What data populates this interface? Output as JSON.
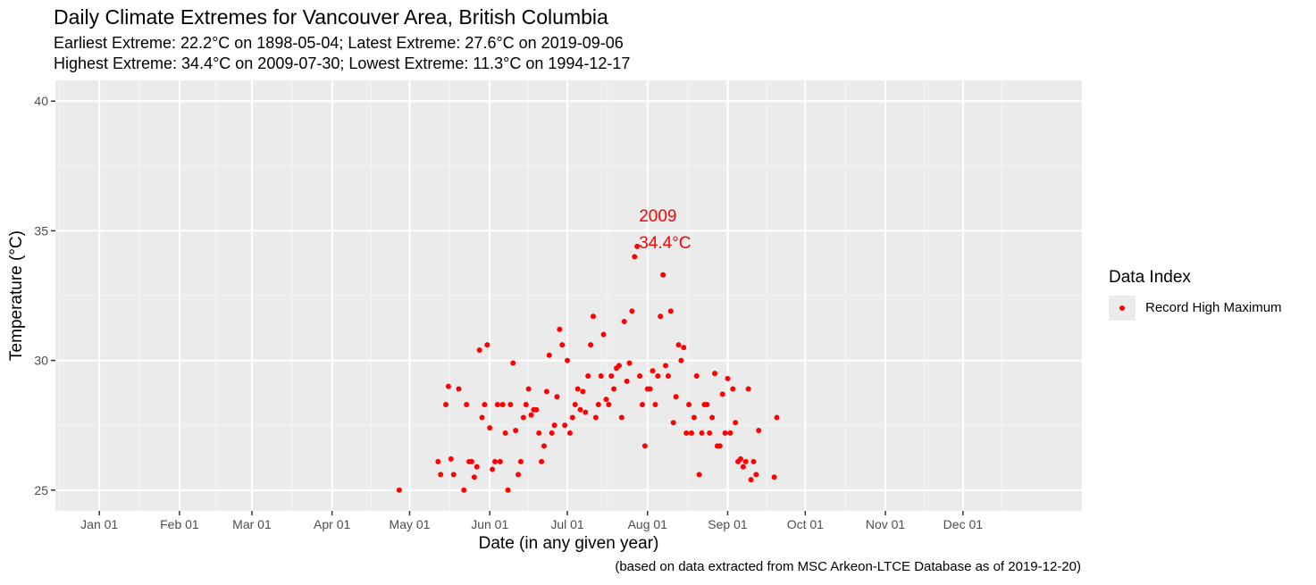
{
  "chart_data": {
    "type": "scatter",
    "title": "Daily Climate Extremes for Vancouver Area, British Columbia",
    "subtitle_lines": [
      "Earliest Extreme: 22.2°C on 1898-05-04; Latest Extreme: 27.6°C on 2019-09-06",
      "Highest Extreme: 34.4°C on 2009-07-30; Lowest Extreme: 11.3°C on 1994-12-17"
    ],
    "xlabel": "Date (in any given year)",
    "ylabel": "Temperature (°C)",
    "caption": "(based on data extracted from MSC Arkeon-LTCE Database as of 2019-12-20)",
    "x_axis_unit": "day of year",
    "x_ticks": [
      {
        "label": "Jan 01",
        "day": 1
      },
      {
        "label": "Feb 01",
        "day": 32
      },
      {
        "label": "Mar 01",
        "day": 60
      },
      {
        "label": "Apr 01",
        "day": 91
      },
      {
        "label": "May 01",
        "day": 121
      },
      {
        "label": "Jun 01",
        "day": 152
      },
      {
        "label": "Jul 01",
        "day": 182
      },
      {
        "label": "Aug 01",
        "day": 213
      },
      {
        "label": "Sep 01",
        "day": 244
      },
      {
        "label": "Oct 01",
        "day": 274
      },
      {
        "label": "Nov 01",
        "day": 305
      },
      {
        "label": "Dec 01",
        "day": 335
      }
    ],
    "xlim": [
      -16,
      381
    ],
    "y_ticks": [
      25,
      30,
      35,
      40
    ],
    "ylim": [
      24.2,
      40.8
    ],
    "grid": true,
    "legend": {
      "title": "Data Index",
      "position": "right",
      "entries": [
        {
          "label": "Record High Maximum",
          "color": "#ff0000"
        }
      ]
    },
    "series": [
      {
        "name": "Record High Maximum",
        "color": "#ff0000",
        "points": [
          [
            117,
            25.0
          ],
          [
            132,
            26.1
          ],
          [
            133,
            25.6
          ],
          [
            135,
            28.3
          ],
          [
            136,
            29.0
          ],
          [
            137,
            26.2
          ],
          [
            138,
            25.6
          ],
          [
            140,
            28.9
          ],
          [
            142,
            25.0
          ],
          [
            143,
            28.3
          ],
          [
            144,
            26.1
          ],
          [
            145,
            26.1
          ],
          [
            146,
            25.5
          ],
          [
            147,
            25.9
          ],
          [
            148,
            30.4
          ],
          [
            149,
            27.8
          ],
          [
            150,
            28.3
          ],
          [
            151,
            30.6
          ],
          [
            152,
            27.4
          ],
          [
            153,
            25.8
          ],
          [
            154,
            26.1
          ],
          [
            155,
            28.3
          ],
          [
            156,
            26.1
          ],
          [
            157,
            28.3
          ],
          [
            158,
            27.2
          ],
          [
            159,
            25.0
          ],
          [
            160,
            28.3
          ],
          [
            161,
            29.9
          ],
          [
            162,
            27.3
          ],
          [
            163,
            25.6
          ],
          [
            164,
            26.1
          ],
          [
            165,
            27.8
          ],
          [
            166,
            28.3
          ],
          [
            167,
            28.9
          ],
          [
            168,
            27.9
          ],
          [
            169,
            28.1
          ],
          [
            170,
            28.1
          ],
          [
            171,
            27.2
          ],
          [
            172,
            26.1
          ],
          [
            173,
            26.7
          ],
          [
            174,
            28.8
          ],
          [
            175,
            30.2
          ],
          [
            176,
            27.2
          ],
          [
            177,
            27.5
          ],
          [
            178,
            28.6
          ],
          [
            179,
            31.2
          ],
          [
            180,
            30.6
          ],
          [
            181,
            27.5
          ],
          [
            182,
            30.0
          ],
          [
            183,
            27.2
          ],
          [
            184,
            27.8
          ],
          [
            185,
            28.3
          ],
          [
            186,
            28.9
          ],
          [
            187,
            28.1
          ],
          [
            188,
            28.8
          ],
          [
            189,
            28.0
          ],
          [
            190,
            29.4
          ],
          [
            191,
            30.6
          ],
          [
            192,
            31.7
          ],
          [
            193,
            27.8
          ],
          [
            194,
            28.3
          ],
          [
            195,
            29.4
          ],
          [
            196,
            31.0
          ],
          [
            197,
            28.5
          ],
          [
            198,
            28.3
          ],
          [
            199,
            29.4
          ],
          [
            200,
            28.9
          ],
          [
            201,
            29.7
          ],
          [
            202,
            29.8
          ],
          [
            203,
            27.8
          ],
          [
            204,
            31.5
          ],
          [
            205,
            29.2
          ],
          [
            206,
            29.9
          ],
          [
            207,
            31.9
          ],
          [
            208,
            34.0
          ],
          [
            209,
            34.4
          ],
          [
            210,
            29.4
          ],
          [
            211,
            28.3
          ],
          [
            212,
            26.7
          ],
          [
            213,
            28.9
          ],
          [
            214,
            28.9
          ],
          [
            215,
            29.6
          ],
          [
            216,
            28.3
          ],
          [
            217,
            29.4
          ],
          [
            218,
            31.7
          ],
          [
            219,
            33.3
          ],
          [
            220,
            29.8
          ],
          [
            221,
            29.4
          ],
          [
            222,
            31.9
          ],
          [
            223,
            27.6
          ],
          [
            224,
            28.6
          ],
          [
            225,
            30.6
          ],
          [
            226,
            30.0
          ],
          [
            227,
            30.5
          ],
          [
            228,
            27.2
          ],
          [
            229,
            28.3
          ],
          [
            230,
            27.2
          ],
          [
            231,
            27.8
          ],
          [
            232,
            29.4
          ],
          [
            233,
            25.6
          ],
          [
            234,
            27.2
          ],
          [
            235,
            28.3
          ],
          [
            236,
            28.3
          ],
          [
            237,
            27.2
          ],
          [
            238,
            27.8
          ],
          [
            239,
            29.5
          ],
          [
            240,
            26.7
          ],
          [
            241,
            26.7
          ],
          [
            242,
            28.7
          ],
          [
            243,
            27.2
          ],
          [
            244,
            29.3
          ],
          [
            245,
            27.2
          ],
          [
            246,
            28.9
          ],
          [
            247,
            27.6
          ],
          [
            248,
            26.1
          ],
          [
            249,
            26.2
          ],
          [
            250,
            25.9
          ],
          [
            251,
            26.1
          ],
          [
            252,
            28.9
          ],
          [
            253,
            25.4
          ],
          [
            254,
            26.1
          ],
          [
            255,
            25.6
          ],
          [
            256,
            27.3
          ],
          [
            262,
            25.5
          ],
          [
            263,
            27.8
          ]
        ]
      }
    ],
    "annotation": {
      "line1": "2009",
      "line2": "34.4°C",
      "x": 209,
      "y": 34.4,
      "color": "#ff0000"
    }
  }
}
